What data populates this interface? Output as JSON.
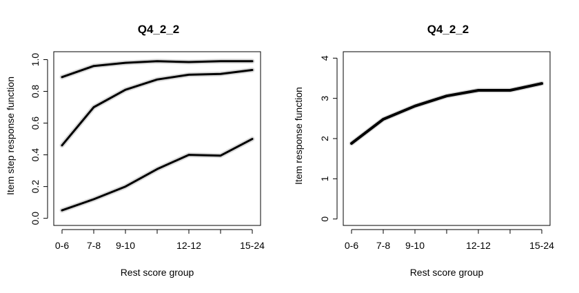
{
  "chart_data": [
    {
      "type": "line",
      "title": "Q4_2_2",
      "xlabel": "Rest score group",
      "ylabel": "Item step response function",
      "categories": [
        "0-6",
        "7-8",
        "9-10",
        "",
        "12-12",
        "",
        "15-24"
      ],
      "x_tick_labels": [
        "0-6",
        "7-8",
        "9-10",
        "12-12",
        "15-24"
      ],
      "ylim": [
        0,
        1
      ],
      "y_ticks": [
        "0.0",
        "0.2",
        "0.4",
        "0.6",
        "0.8",
        "1.0"
      ],
      "grid": false,
      "line_color": "#000000",
      "band_color": "#d9d9d9",
      "series": [
        {
          "values": [
            0.89,
            0.96,
            0.98,
            0.99,
            0.985,
            0.99,
            0.99
          ]
        },
        {
          "values": [
            0.46,
            0.7,
            0.81,
            0.875,
            0.905,
            0.91,
            0.935
          ]
        },
        {
          "values": [
            0.05,
            0.12,
            0.2,
            0.31,
            0.4,
            0.395,
            0.5
          ]
        }
      ]
    },
    {
      "type": "line",
      "title": "Q4_2_2",
      "xlabel": "Rest score group",
      "ylabel": "Item response function",
      "categories": [
        "0-6",
        "7-8",
        "9-10",
        "",
        "12-12",
        "",
        "15-24"
      ],
      "x_tick_labels": [
        "0-6",
        "7-8",
        "9-10",
        "12-12",
        "15-24"
      ],
      "ylim": [
        0,
        4
      ],
      "y_ticks": [
        "0",
        "1",
        "2",
        "3",
        "4"
      ],
      "grid": false,
      "line_color": "#000000",
      "band_color": "#d9d9d9",
      "series": [
        {
          "values": [
            1.88,
            2.48,
            2.81,
            3.06,
            3.2,
            3.2,
            3.37
          ]
        }
      ]
    }
  ]
}
